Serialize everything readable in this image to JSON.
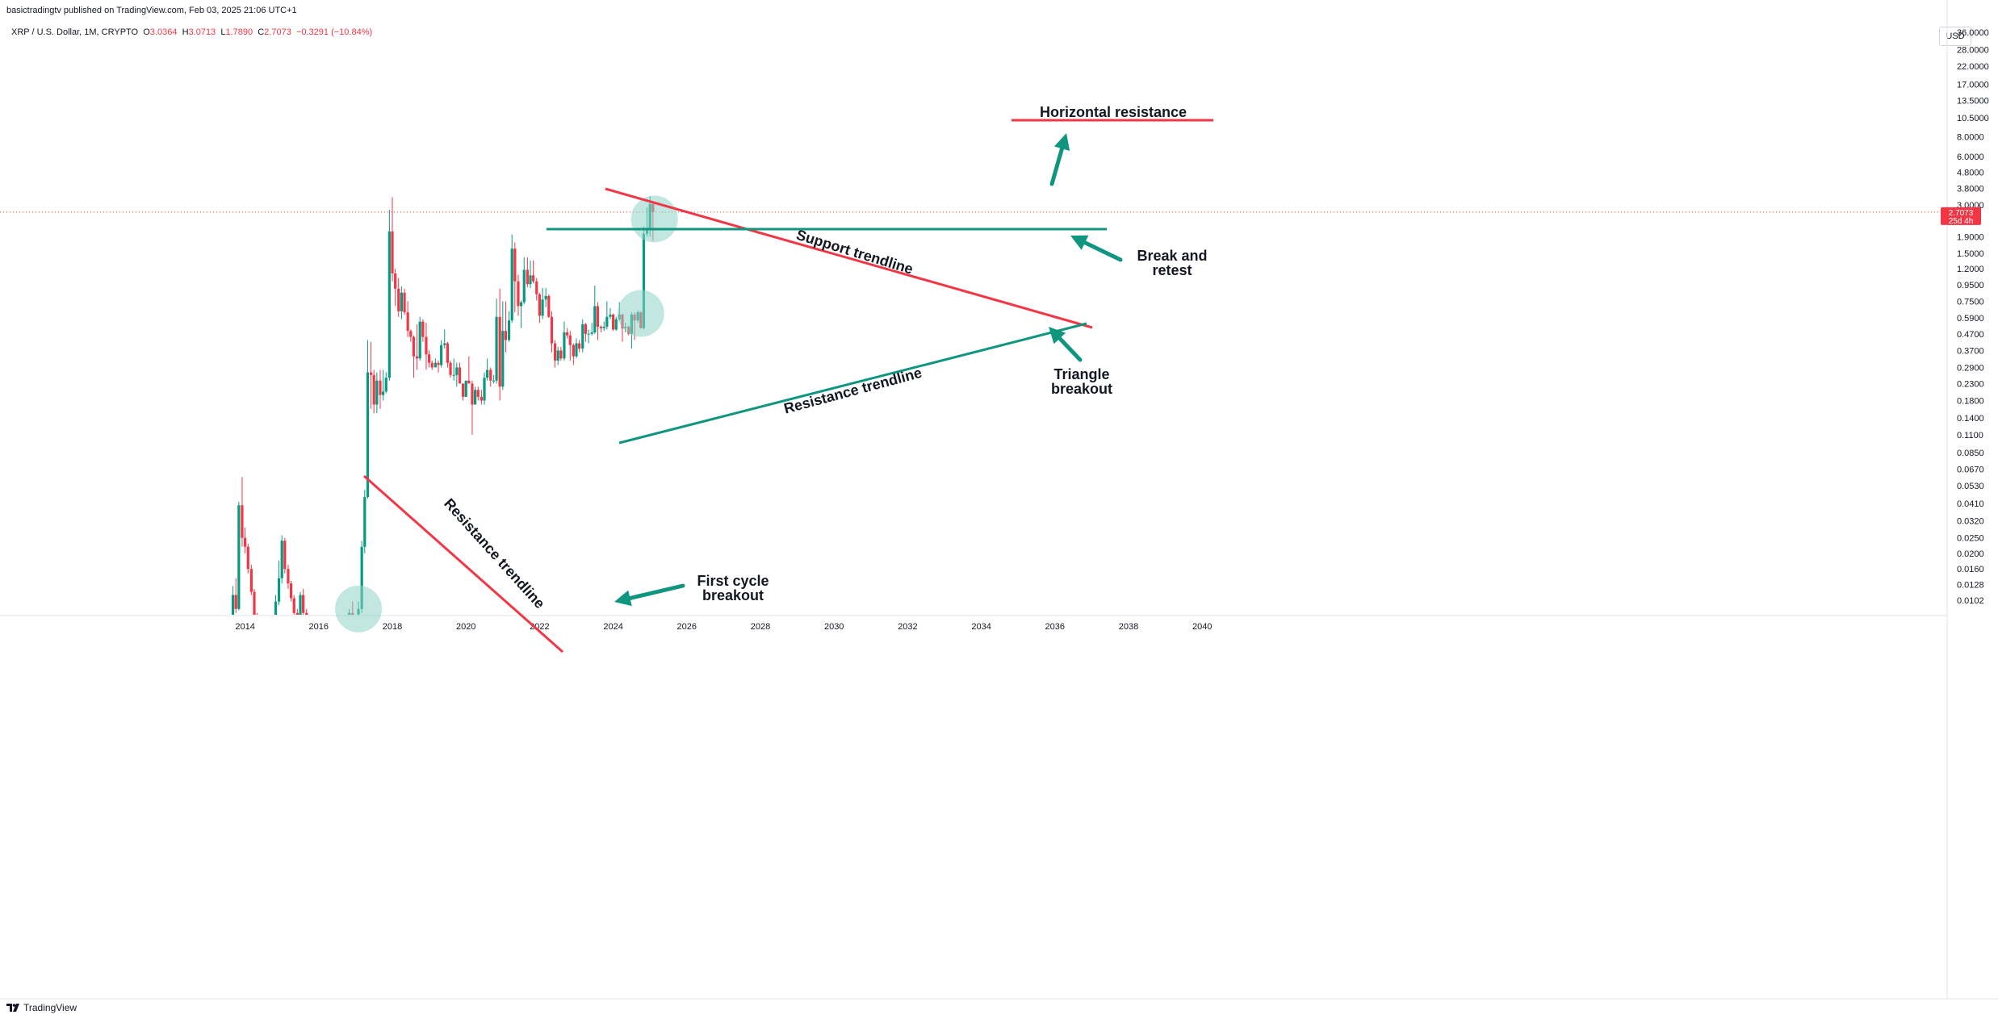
{
  "header": {
    "publisher": "basictradingtv published on TradingView.com, Feb 03, 2025 21:06 UTC+1",
    "symbol": "XRP / U.S. Dollar, 1M, CRYPTO",
    "open_label": "O",
    "open": "3.0364",
    "high_label": "H",
    "high": "3.0713",
    "low_label": "L",
    "low": "1.7890",
    "close_label": "C",
    "close": "2.7073",
    "change": "−0.3291 (−10.84%)"
  },
  "currency_button": "USD",
  "footer": {
    "brand": "TradingView"
  },
  "colors": {
    "up": "#089981",
    "down": "#f23645",
    "annotation_green": "#10957e",
    "annotation_red": "#f23645",
    "circle": "#8ed3c6"
  },
  "chart_data": {
    "type": "candlestick",
    "y_scale": "log",
    "y_ticks": [
      "36.0000",
      "28.0000",
      "22.0000",
      "17.0000",
      "13.5000",
      "10.5000",
      "8.0000",
      "6.0000",
      "4.8000",
      "3.8000",
      "3.0000",
      "1.9000",
      "1.5000",
      "1.2000",
      "0.9500",
      "0.7500",
      "0.5900",
      "0.4700",
      "0.3700",
      "0.2900",
      "0.2300",
      "0.1800",
      "0.1400",
      "0.1100",
      "0.0850",
      "0.0670",
      "0.0530",
      "0.0410",
      "0.0320",
      "0.0250",
      "0.0200",
      "0.0160",
      "0.0128",
      "0.0102"
    ],
    "x_ticks": [
      "2014",
      "2016",
      "2018",
      "2020",
      "2022",
      "2024",
      "2026",
      "2028",
      "2030",
      "2032",
      "2034",
      "2036",
      "2038",
      "2040"
    ],
    "last_price": "2.7073",
    "countdown": "25d 4h",
    "candles": [
      {
        "t": 2013.5,
        "o": 0.0048,
        "h": 0.006,
        "l": 0.0042,
        "c": 0.0055
      },
      {
        "t": 2013.58,
        "o": 0.0055,
        "h": 0.008,
        "l": 0.005,
        "c": 0.0075
      },
      {
        "t": 2013.67,
        "o": 0.0075,
        "h": 0.0125,
        "l": 0.007,
        "c": 0.011
      },
      {
        "t": 2013.75,
        "o": 0.011,
        "h": 0.014,
        "l": 0.0085,
        "c": 0.009
      },
      {
        "t": 2013.83,
        "o": 0.009,
        "h": 0.042,
        "l": 0.0088,
        "c": 0.04
      },
      {
        "t": 2013.92,
        "o": 0.04,
        "h": 0.06,
        "l": 0.022,
        "c": 0.025
      },
      {
        "t": 2014.0,
        "o": 0.025,
        "h": 0.029,
        "l": 0.02,
        "c": 0.022
      },
      {
        "t": 2014.08,
        "o": 0.022,
        "h": 0.023,
        "l": 0.015,
        "c": 0.016
      },
      {
        "t": 2014.17,
        "o": 0.016,
        "h": 0.017,
        "l": 0.011,
        "c": 0.0115
      },
      {
        "t": 2014.25,
        "o": 0.0115,
        "h": 0.012,
        "l": 0.0075,
        "c": 0.008
      },
      {
        "t": 2014.33,
        "o": 0.008,
        "h": 0.0085,
        "l": 0.005,
        "c": 0.0055
      },
      {
        "t": 2014.42,
        "o": 0.0055,
        "h": 0.006,
        "l": 0.0042,
        "c": 0.0045
      },
      {
        "t": 2014.5,
        "o": 0.0045,
        "h": 0.005,
        "l": 0.0038,
        "c": 0.004
      },
      {
        "t": 2014.58,
        "o": 0.004,
        "h": 0.0045,
        "l": 0.0035,
        "c": 0.0038
      },
      {
        "t": 2014.67,
        "o": 0.0038,
        "h": 0.005,
        "l": 0.0036,
        "c": 0.0048
      },
      {
        "t": 2014.75,
        "o": 0.0048,
        "h": 0.006,
        "l": 0.0045,
        "c": 0.0055
      },
      {
        "t": 2014.83,
        "o": 0.0055,
        "h": 0.011,
        "l": 0.0052,
        "c": 0.01
      },
      {
        "t": 2014.92,
        "o": 0.01,
        "h": 0.018,
        "l": 0.0095,
        "c": 0.014
      },
      {
        "t": 2015.0,
        "o": 0.014,
        "h": 0.026,
        "l": 0.013,
        "c": 0.024
      },
      {
        "t": 2015.08,
        "o": 0.024,
        "h": 0.025,
        "l": 0.015,
        "c": 0.016
      },
      {
        "t": 2015.17,
        "o": 0.016,
        "h": 0.017,
        "l": 0.012,
        "c": 0.013
      },
      {
        "t": 2015.25,
        "o": 0.013,
        "h": 0.0135,
        "l": 0.01,
        "c": 0.0105
      },
      {
        "t": 2015.33,
        "o": 0.0105,
        "h": 0.011,
        "l": 0.008,
        "c": 0.0085
      },
      {
        "t": 2015.42,
        "o": 0.0085,
        "h": 0.009,
        "l": 0.007,
        "c": 0.0075
      },
      {
        "t": 2015.5,
        "o": 0.0075,
        "h": 0.0115,
        "l": 0.007,
        "c": 0.011
      },
      {
        "t": 2015.58,
        "o": 0.011,
        "h": 0.012,
        "l": 0.008,
        "c": 0.0085
      },
      {
        "t": 2015.67,
        "o": 0.0085,
        "h": 0.009,
        "l": 0.0062,
        "c": 0.0065
      },
      {
        "t": 2015.75,
        "o": 0.0065,
        "h": 0.007,
        "l": 0.0055,
        "c": 0.0058
      },
      {
        "t": 2015.83,
        "o": 0.0058,
        "h": 0.0062,
        "l": 0.005,
        "c": 0.0052
      },
      {
        "t": 2015.92,
        "o": 0.0052,
        "h": 0.0058,
        "l": 0.0048,
        "c": 0.0055
      },
      {
        "t": 2016.0,
        "o": 0.0055,
        "h": 0.007,
        "l": 0.0052,
        "c": 0.006
      },
      {
        "t": 2016.08,
        "o": 0.006,
        "h": 0.0065,
        "l": 0.0055,
        "c": 0.0058
      },
      {
        "t": 2016.17,
        "o": 0.0058,
        "h": 0.0062,
        "l": 0.0056,
        "c": 0.006
      },
      {
        "t": 2016.25,
        "o": 0.006,
        "h": 0.0063,
        "l": 0.0058,
        "c": 0.0059
      },
      {
        "t": 2016.33,
        "o": 0.0059,
        "h": 0.0066,
        "l": 0.0057,
        "c": 0.0064
      },
      {
        "t": 2016.42,
        "o": 0.0064,
        "h": 0.0066,
        "l": 0.006,
        "c": 0.0061
      },
      {
        "t": 2016.5,
        "o": 0.0061,
        "h": 0.0068,
        "l": 0.0059,
        "c": 0.0066
      },
      {
        "t": 2016.58,
        "o": 0.0066,
        "h": 0.007,
        "l": 0.006,
        "c": 0.0062
      },
      {
        "t": 2016.67,
        "o": 0.0062,
        "h": 0.0066,
        "l": 0.006,
        "c": 0.0063
      },
      {
        "t": 2016.75,
        "o": 0.0063,
        "h": 0.0075,
        "l": 0.006,
        "c": 0.007
      },
      {
        "t": 2016.83,
        "o": 0.007,
        "h": 0.009,
        "l": 0.0068,
        "c": 0.0085
      },
      {
        "t": 2016.92,
        "o": 0.0085,
        "h": 0.01,
        "l": 0.0065,
        "c": 0.0065
      },
      {
        "t": 2017.0,
        "o": 0.0065,
        "h": 0.0075,
        "l": 0.006,
        "c": 0.007
      },
      {
        "t": 2017.08,
        "o": 0.007,
        "h": 0.01,
        "l": 0.0062,
        "c": 0.009
      },
      {
        "t": 2017.17,
        "o": 0.009,
        "h": 0.024,
        "l": 0.0085,
        "c": 0.022
      },
      {
        "t": 2017.25,
        "o": 0.022,
        "h": 0.05,
        "l": 0.02,
        "c": 0.045
      },
      {
        "t": 2017.33,
        "o": 0.045,
        "h": 0.43,
        "l": 0.044,
        "c": 0.27
      },
      {
        "t": 2017.42,
        "o": 0.27,
        "h": 0.42,
        "l": 0.16,
        "c": 0.26
      },
      {
        "t": 2017.5,
        "o": 0.26,
        "h": 0.28,
        "l": 0.15,
        "c": 0.17
      },
      {
        "t": 2017.58,
        "o": 0.17,
        "h": 0.27,
        "l": 0.15,
        "c": 0.24
      },
      {
        "t": 2017.67,
        "o": 0.24,
        "h": 0.28,
        "l": 0.16,
        "c": 0.195
      },
      {
        "t": 2017.75,
        "o": 0.195,
        "h": 0.28,
        "l": 0.18,
        "c": 0.205
      },
      {
        "t": 2017.83,
        "o": 0.205,
        "h": 0.27,
        "l": 0.2,
        "c": 0.25
      },
      {
        "t": 2017.92,
        "o": 0.25,
        "h": 2.8,
        "l": 0.24,
        "c": 2.05
      },
      {
        "t": 2018.0,
        "o": 2.05,
        "h": 3.35,
        "l": 1.0,
        "c": 1.12
      },
      {
        "t": 2018.08,
        "o": 1.12,
        "h": 1.2,
        "l": 0.7,
        "c": 0.9
      },
      {
        "t": 2018.17,
        "o": 0.9,
        "h": 1.05,
        "l": 0.6,
        "c": 0.65
      },
      {
        "t": 2018.25,
        "o": 0.65,
        "h": 0.93,
        "l": 0.58,
        "c": 0.85
      },
      {
        "t": 2018.33,
        "o": 0.85,
        "h": 0.9,
        "l": 0.62,
        "c": 0.64
      },
      {
        "t": 2018.42,
        "o": 0.64,
        "h": 0.75,
        "l": 0.45,
        "c": 0.49
      },
      {
        "t": 2018.5,
        "o": 0.49,
        "h": 0.5,
        "l": 0.42,
        "c": 0.45
      },
      {
        "t": 2018.58,
        "o": 0.45,
        "h": 0.46,
        "l": 0.25,
        "c": 0.34
      },
      {
        "t": 2018.67,
        "o": 0.34,
        "h": 0.54,
        "l": 0.28,
        "c": 0.33
      },
      {
        "t": 2018.75,
        "o": 0.33,
        "h": 0.6,
        "l": 0.32,
        "c": 0.56
      },
      {
        "t": 2018.83,
        "o": 0.56,
        "h": 0.58,
        "l": 0.42,
        "c": 0.45
      },
      {
        "t": 2018.92,
        "o": 0.45,
        "h": 0.55,
        "l": 0.28,
        "c": 0.35
      },
      {
        "t": 2019.0,
        "o": 0.35,
        "h": 0.37,
        "l": 0.29,
        "c": 0.31
      },
      {
        "t": 2019.08,
        "o": 0.31,
        "h": 0.32,
        "l": 0.28,
        "c": 0.29
      },
      {
        "t": 2019.17,
        "o": 0.29,
        "h": 0.33,
        "l": 0.29,
        "c": 0.31
      },
      {
        "t": 2019.25,
        "o": 0.31,
        "h": 0.32,
        "l": 0.27,
        "c": 0.3
      },
      {
        "t": 2019.33,
        "o": 0.3,
        "h": 0.43,
        "l": 0.29,
        "c": 0.4
      },
      {
        "t": 2019.42,
        "o": 0.4,
        "h": 0.5,
        "l": 0.38,
        "c": 0.41
      },
      {
        "t": 2019.5,
        "o": 0.41,
        "h": 0.42,
        "l": 0.29,
        "c": 0.31
      },
      {
        "t": 2019.58,
        "o": 0.31,
        "h": 0.32,
        "l": 0.25,
        "c": 0.26
      },
      {
        "t": 2019.67,
        "o": 0.26,
        "h": 0.33,
        "l": 0.24,
        "c": 0.26
      },
      {
        "t": 2019.75,
        "o": 0.26,
        "h": 0.31,
        "l": 0.22,
        "c": 0.29
      },
      {
        "t": 2019.83,
        "o": 0.29,
        "h": 0.31,
        "l": 0.23,
        "c": 0.23
      },
      {
        "t": 2019.92,
        "o": 0.23,
        "h": 0.23,
        "l": 0.18,
        "c": 0.19
      },
      {
        "t": 2020.0,
        "o": 0.19,
        "h": 0.24,
        "l": 0.19,
        "c": 0.24
      },
      {
        "t": 2020.08,
        "o": 0.24,
        "h": 0.34,
        "l": 0.23,
        "c": 0.23
      },
      {
        "t": 2020.17,
        "o": 0.23,
        "h": 0.24,
        "l": 0.11,
        "c": 0.17
      },
      {
        "t": 2020.25,
        "o": 0.17,
        "h": 0.22,
        "l": 0.17,
        "c": 0.21
      },
      {
        "t": 2020.33,
        "o": 0.21,
        "h": 0.22,
        "l": 0.18,
        "c": 0.19
      },
      {
        "t": 2020.42,
        "o": 0.19,
        "h": 0.21,
        "l": 0.17,
        "c": 0.18
      },
      {
        "t": 2020.5,
        "o": 0.18,
        "h": 0.27,
        "l": 0.17,
        "c": 0.25
      },
      {
        "t": 2020.58,
        "o": 0.25,
        "h": 0.33,
        "l": 0.24,
        "c": 0.28
      },
      {
        "t": 2020.67,
        "o": 0.28,
        "h": 0.29,
        "l": 0.22,
        "c": 0.24
      },
      {
        "t": 2020.75,
        "o": 0.24,
        "h": 0.26,
        "l": 0.23,
        "c": 0.24
      },
      {
        "t": 2020.83,
        "o": 0.24,
        "h": 0.78,
        "l": 0.23,
        "c": 0.6
      },
      {
        "t": 2020.92,
        "o": 0.6,
        "h": 0.9,
        "l": 0.18,
        "c": 0.22
      },
      {
        "t": 2021.0,
        "o": 0.22,
        "h": 0.75,
        "l": 0.21,
        "c": 0.49
      },
      {
        "t": 2021.08,
        "o": 0.49,
        "h": 0.75,
        "l": 0.36,
        "c": 0.43
      },
      {
        "t": 2021.17,
        "o": 0.43,
        "h": 0.65,
        "l": 0.42,
        "c": 0.57
      },
      {
        "t": 2021.25,
        "o": 0.57,
        "h": 1.96,
        "l": 0.55,
        "c": 1.6
      },
      {
        "t": 2021.33,
        "o": 1.6,
        "h": 1.75,
        "l": 0.64,
        "c": 1.0
      },
      {
        "t": 2021.42,
        "o": 1.0,
        "h": 1.1,
        "l": 0.61,
        "c": 0.7
      },
      {
        "t": 2021.5,
        "o": 0.7,
        "h": 0.76,
        "l": 0.51,
        "c": 0.74
      },
      {
        "t": 2021.58,
        "o": 0.74,
        "h": 1.41,
        "l": 0.72,
        "c": 1.18
      },
      {
        "t": 2021.67,
        "o": 1.18,
        "h": 1.41,
        "l": 0.92,
        "c": 0.96
      },
      {
        "t": 2021.75,
        "o": 0.96,
        "h": 1.35,
        "l": 0.91,
        "c": 1.09
      },
      {
        "t": 2021.83,
        "o": 1.09,
        "h": 1.35,
        "l": 0.97,
        "c": 1.0
      },
      {
        "t": 2021.92,
        "o": 1.0,
        "h": 1.05,
        "l": 0.76,
        "c": 0.83
      },
      {
        "t": 2022.0,
        "o": 0.83,
        "h": 0.85,
        "l": 0.55,
        "c": 0.61
      },
      {
        "t": 2022.08,
        "o": 0.61,
        "h": 0.91,
        "l": 0.58,
        "c": 0.77
      },
      {
        "t": 2022.17,
        "o": 0.77,
        "h": 0.91,
        "l": 0.69,
        "c": 0.81
      },
      {
        "t": 2022.25,
        "o": 0.81,
        "h": 0.83,
        "l": 0.59,
        "c": 0.6
      },
      {
        "t": 2022.33,
        "o": 0.6,
        "h": 0.65,
        "l": 0.36,
        "c": 0.41
      },
      {
        "t": 2022.42,
        "o": 0.41,
        "h": 0.43,
        "l": 0.29,
        "c": 0.32
      },
      {
        "t": 2022.5,
        "o": 0.32,
        "h": 0.39,
        "l": 0.3,
        "c": 0.37
      },
      {
        "t": 2022.58,
        "o": 0.37,
        "h": 0.39,
        "l": 0.32,
        "c": 0.33
      },
      {
        "t": 2022.67,
        "o": 0.33,
        "h": 0.56,
        "l": 0.32,
        "c": 0.48
      },
      {
        "t": 2022.75,
        "o": 0.48,
        "h": 0.51,
        "l": 0.44,
        "c": 0.46
      },
      {
        "t": 2022.83,
        "o": 0.46,
        "h": 0.49,
        "l": 0.32,
        "c": 0.4
      },
      {
        "t": 2022.92,
        "o": 0.4,
        "h": 0.41,
        "l": 0.3,
        "c": 0.34
      },
      {
        "t": 2023.0,
        "o": 0.34,
        "h": 0.44,
        "l": 0.33,
        "c": 0.41
      },
      {
        "t": 2023.08,
        "o": 0.41,
        "h": 0.43,
        "l": 0.36,
        "c": 0.38
      },
      {
        "t": 2023.17,
        "o": 0.38,
        "h": 0.58,
        "l": 0.36,
        "c": 0.54
      },
      {
        "t": 2023.25,
        "o": 0.54,
        "h": 0.55,
        "l": 0.42,
        "c": 0.47
      },
      {
        "t": 2023.33,
        "o": 0.47,
        "h": 0.5,
        "l": 0.41,
        "c": 0.47
      },
      {
        "t": 2023.42,
        "o": 0.47,
        "h": 0.55,
        "l": 0.46,
        "c": 0.48
      },
      {
        "t": 2023.5,
        "o": 0.48,
        "h": 0.94,
        "l": 0.47,
        "c": 0.7
      },
      {
        "t": 2023.58,
        "o": 0.7,
        "h": 0.74,
        "l": 0.43,
        "c": 0.52
      },
      {
        "t": 2023.67,
        "o": 0.52,
        "h": 0.53,
        "l": 0.48,
        "c": 0.51
      },
      {
        "t": 2023.75,
        "o": 0.51,
        "h": 0.56,
        "l": 0.49,
        "c": 0.52
      },
      {
        "t": 2023.83,
        "o": 0.52,
        "h": 0.75,
        "l": 0.5,
        "c": 0.6
      },
      {
        "t": 2023.92,
        "o": 0.6,
        "h": 0.68,
        "l": 0.58,
        "c": 0.62
      },
      {
        "t": 2024.0,
        "o": 0.62,
        "h": 0.63,
        "l": 0.49,
        "c": 0.5
      },
      {
        "t": 2024.08,
        "o": 0.5,
        "h": 0.6,
        "l": 0.49,
        "c": 0.58
      },
      {
        "t": 2024.17,
        "o": 0.58,
        "h": 0.74,
        "l": 0.57,
        "c": 0.62
      },
      {
        "t": 2024.25,
        "o": 0.62,
        "h": 0.63,
        "l": 0.42,
        "c": 0.51
      },
      {
        "t": 2024.33,
        "o": 0.51,
        "h": 0.55,
        "l": 0.48,
        "c": 0.52
      },
      {
        "t": 2024.42,
        "o": 0.52,
        "h": 0.53,
        "l": 0.46,
        "c": 0.47
      },
      {
        "t": 2024.5,
        "o": 0.47,
        "h": 0.64,
        "l": 0.38,
        "c": 0.62
      },
      {
        "t": 2024.58,
        "o": 0.62,
        "h": 0.64,
        "l": 0.43,
        "c": 0.57
      },
      {
        "t": 2024.67,
        "o": 0.57,
        "h": 0.66,
        "l": 0.55,
        "c": 0.64
      },
      {
        "t": 2024.75,
        "o": 0.64,
        "h": 0.65,
        "l": 0.51,
        "c": 0.51
      },
      {
        "t": 2024.83,
        "o": 0.51,
        "h": 2.2,
        "l": 0.5,
        "c": 1.98
      },
      {
        "t": 2024.92,
        "o": 1.98,
        "h": 2.91,
        "l": 1.9,
        "c": 2.08
      },
      {
        "t": 2025.0,
        "o": 2.08,
        "h": 3.4,
        "l": 1.9,
        "c": 3.0364
      },
      {
        "t": 2025.08,
        "o": 3.0364,
        "h": 3.0713,
        "l": 1.789,
        "c": 2.7073
      }
    ],
    "annotations": [
      {
        "kind": "label",
        "text": "Horizontal resistance"
      },
      {
        "kind": "label",
        "text": "Break and"
      },
      {
        "kind": "label",
        "text": "retest"
      },
      {
        "kind": "label",
        "text": "Triangle"
      },
      {
        "kind": "label",
        "text": "breakout"
      },
      {
        "kind": "label",
        "text": "First cycle"
      },
      {
        "kind": "label",
        "text": "breakout"
      },
      {
        "kind": "label",
        "text": "Resistance trendline"
      },
      {
        "kind": "label",
        "text": "Support trendline"
      },
      {
        "kind": "label",
        "text": "Resistance trendline"
      }
    ]
  }
}
